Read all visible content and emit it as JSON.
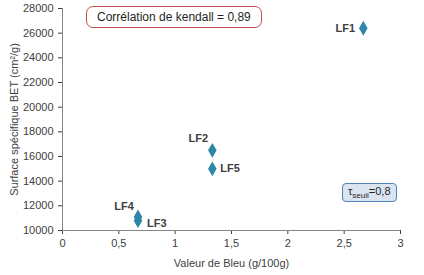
{
  "chart_data": {
    "type": "scatter",
    "x_label": "Valeur de Bleu (g/100g)",
    "y_label": "Surface spécifique BET (cm²/g)",
    "x": [
      2.67,
      1.33,
      1.33,
      0.67,
      0.67
    ],
    "values": [
      26400,
      16500,
      15000,
      11100,
      10800
    ],
    "labels": [
      "LF1",
      "LF2",
      "LF5",
      "LF4",
      "LF3"
    ],
    "color": "#2e86a8",
    "marker": "diamond",
    "xlim": [
      0,
      3
    ],
    "xticks": [
      0,
      {
        "value": 0.5,
        "label": "0,5"
      },
      1,
      {
        "value": 1.5,
        "label": "1,5"
      },
      2,
      {
        "value": 2.5,
        "label": "2,5"
      },
      3
    ],
    "ylim": [
      10000,
      28000
    ],
    "yticks": [
      10000,
      12000,
      14000,
      16000,
      18000,
      20000,
      22000,
      24000,
      26000,
      28000
    ],
    "grid": false,
    "annotations": [
      {
        "text": "Corrélation de kendall = 0,89"
      },
      {
        "symbol": "τ",
        "subscript": "seuil",
        "text": "=0,8"
      }
    ]
  }
}
